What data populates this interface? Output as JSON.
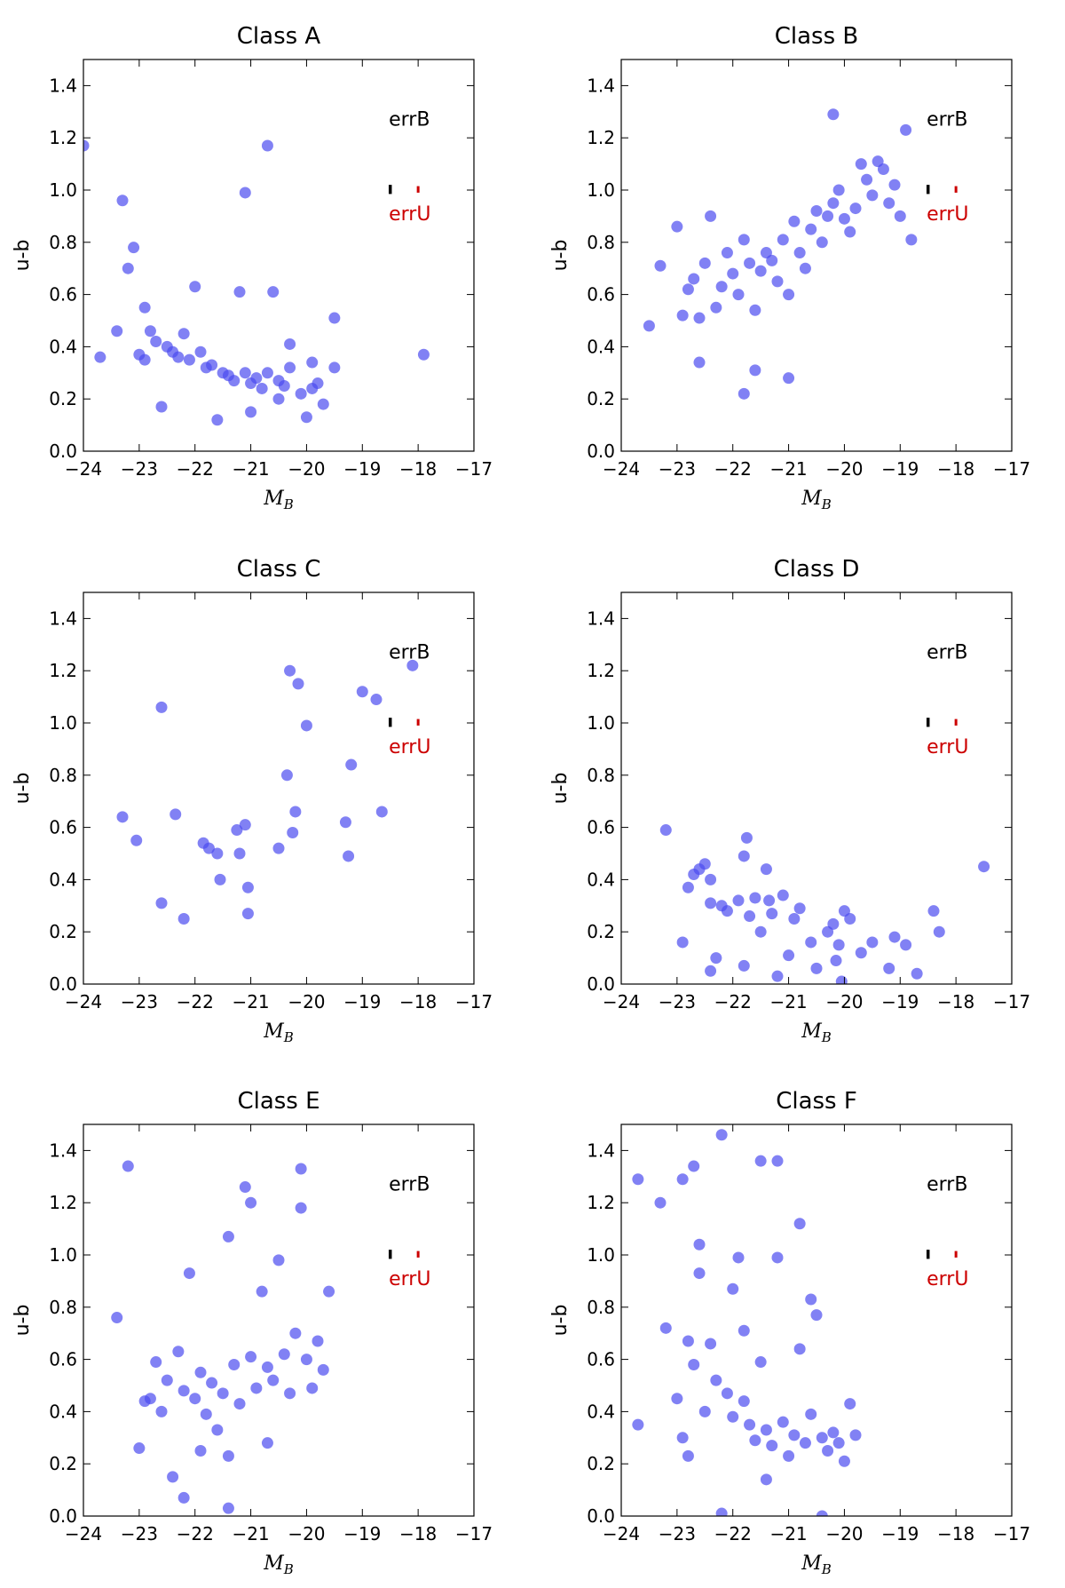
{
  "chart_data": [
    {
      "type": "scatter",
      "title": "Class A",
      "xlabel": "M",
      "xlabel_sub": "B",
      "ylabel": "u-b",
      "xlim": [
        -24,
        -17
      ],
      "ylim": [
        0.0,
        1.5
      ],
      "xticks": [
        "−24",
        "−23",
        "−22",
        "−21",
        "−20",
        "−19",
        "−18",
        "−17"
      ],
      "yticks": [
        "0.0",
        "0.2",
        "0.4",
        "0.6",
        "0.8",
        "1.0",
        "1.2",
        "1.4"
      ],
      "annotations": {
        "errB": "errB",
        "errU": "errU",
        "errB_color": "#000000",
        "errU_color": "#cc0000"
      },
      "point_color": "#4b4bf0",
      "x": [
        -24.0,
        -23.7,
        -23.4,
        -23.2,
        -23.1,
        -23.0,
        -22.9,
        -22.8,
        -22.7,
        -22.5,
        -22.4,
        -22.3,
        -22.1,
        -21.9,
        -21.8,
        -21.7,
        -21.5,
        -21.4,
        -21.3,
        -21.1,
        -21.0,
        -20.9,
        -20.8,
        -20.7,
        -20.5,
        -20.4,
        -20.3,
        -20.1,
        -20.0,
        -19.9,
        -19.8,
        -19.7,
        -19.5,
        -23.3,
        -21.1,
        -20.7,
        -17.9,
        -22.6,
        -22.0,
        -21.2,
        -20.6,
        -20.3,
        -19.5,
        -22.9,
        -22.2,
        -21.6,
        -21.0,
        -20.5,
        -19.9
      ],
      "y": [
        1.17,
        0.36,
        0.46,
        0.7,
        0.78,
        0.37,
        0.35,
        0.46,
        0.42,
        0.4,
        0.38,
        0.36,
        0.35,
        0.38,
        0.32,
        0.33,
        0.3,
        0.29,
        0.27,
        0.3,
        0.26,
        0.28,
        0.24,
        0.3,
        0.27,
        0.25,
        0.32,
        0.22,
        0.13,
        0.24,
        0.26,
        0.18,
        0.32,
        0.96,
        0.99,
        1.17,
        0.37,
        0.17,
        0.63,
        0.61,
        0.61,
        0.41,
        0.51,
        0.55,
        0.45,
        0.12,
        0.15,
        0.2,
        0.34
      ]
    },
    {
      "type": "scatter",
      "title": "Class B",
      "xlabel": "M",
      "xlabel_sub": "B",
      "ylabel": "u-b",
      "xlim": [
        -24,
        -17
      ],
      "ylim": [
        0.0,
        1.5
      ],
      "xticks": [
        "−24",
        "−23",
        "−22",
        "−21",
        "−20",
        "−19",
        "−18",
        "−17"
      ],
      "yticks": [
        "0.0",
        "0.2",
        "0.4",
        "0.6",
        "0.8",
        "1.0",
        "1.2",
        "1.4"
      ],
      "annotations": {
        "errB": "errB",
        "errU": "errU",
        "errB_color": "#000000",
        "errU_color": "#cc0000"
      },
      "point_color": "#4b4bf0",
      "x": [
        -23.5,
        -23.3,
        -23.0,
        -22.9,
        -22.8,
        -22.7,
        -22.6,
        -22.5,
        -22.4,
        -22.3,
        -22.2,
        -22.1,
        -22.0,
        -21.9,
        -21.8,
        -21.7,
        -21.6,
        -21.5,
        -21.4,
        -21.3,
        -21.2,
        -21.1,
        -21.0,
        -20.9,
        -20.8,
        -20.7,
        -20.6,
        -20.5,
        -20.4,
        -20.3,
        -20.2,
        -20.1,
        -20.0,
        -19.9,
        -19.8,
        -19.7,
        -19.6,
        -19.5,
        -19.4,
        -19.3,
        -19.2,
        -19.1,
        -19.0,
        -18.9,
        -18.8,
        -21.8,
        -21.0,
        -20.2,
        -22.6,
        -21.6
      ],
      "y": [
        0.48,
        0.71,
        0.86,
        0.52,
        0.62,
        0.66,
        0.51,
        0.72,
        0.9,
        0.55,
        0.63,
        0.76,
        0.68,
        0.6,
        0.81,
        0.72,
        0.54,
        0.69,
        0.76,
        0.73,
        0.65,
        0.81,
        0.6,
        0.88,
        0.76,
        0.7,
        0.85,
        0.92,
        0.8,
        0.9,
        0.95,
        1.0,
        0.89,
        0.84,
        0.93,
        1.1,
        1.04,
        0.98,
        1.11,
        1.08,
        0.95,
        1.02,
        0.9,
        1.23,
        0.81,
        0.22,
        0.28,
        1.29,
        0.34,
        0.31
      ]
    },
    {
      "type": "scatter",
      "title": "Class C",
      "xlabel": "M",
      "xlabel_sub": "B",
      "ylabel": "u-b",
      "xlim": [
        -24,
        -17
      ],
      "ylim": [
        0.0,
        1.5
      ],
      "xticks": [
        "−24",
        "−23",
        "−22",
        "−21",
        "−20",
        "−19",
        "−18",
        "−17"
      ],
      "yticks": [
        "0.0",
        "0.2",
        "0.4",
        "0.6",
        "0.8",
        "1.0",
        "1.2",
        "1.4"
      ],
      "annotations": {
        "errB": "errB",
        "errU": "errU",
        "errB_color": "#000000",
        "errU_color": "#cc0000"
      },
      "point_color": "#4b4bf0",
      "x": [
        -23.3,
        -23.05,
        -22.6,
        -22.6,
        -22.35,
        -22.2,
        -21.85,
        -21.75,
        -21.6,
        -21.55,
        -21.25,
        -21.2,
        -21.1,
        -21.05,
        -21.05,
        -20.5,
        -20.35,
        -20.3,
        -20.25,
        -20.2,
        -20.15,
        -20.0,
        -19.3,
        -19.2,
        -19.25,
        -19.0,
        -18.75,
        -18.65,
        -18.1
      ],
      "y": [
        0.64,
        0.55,
        1.06,
        0.31,
        0.65,
        0.25,
        0.54,
        0.52,
        0.5,
        0.4,
        0.59,
        0.5,
        0.61,
        0.37,
        0.27,
        0.52,
        0.8,
        1.2,
        0.58,
        0.66,
        1.15,
        0.99,
        0.62,
        0.84,
        0.49,
        1.12,
        1.09,
        0.66,
        1.22
      ]
    },
    {
      "type": "scatter",
      "title": "Class D",
      "xlabel": "M",
      "xlabel_sub": "B",
      "ylabel": "u-b",
      "xlim": [
        -24,
        -17
      ],
      "ylim": [
        0.0,
        1.5
      ],
      "xticks": [
        "−24",
        "−23",
        "−22",
        "−21",
        "−20",
        "−19",
        "−18",
        "−17"
      ],
      "yticks": [
        "0.0",
        "0.2",
        "0.4",
        "0.6",
        "0.8",
        "1.0",
        "1.2",
        "1.4"
      ],
      "annotations": {
        "errB": "errB",
        "errU": "errU",
        "errB_color": "#000000",
        "errU_color": "#cc0000"
      },
      "point_color": "#4b4bf0",
      "x": [
        -23.2,
        -22.9,
        -22.8,
        -22.7,
        -22.6,
        -22.5,
        -22.4,
        -22.4,
        -22.3,
        -22.2,
        -22.1,
        -21.9,
        -21.8,
        -21.75,
        -21.7,
        -21.6,
        -21.5,
        -21.4,
        -21.35,
        -21.3,
        -21.2,
        -21.1,
        -21.0,
        -20.9,
        -20.8,
        -20.6,
        -20.5,
        -20.3,
        -20.2,
        -20.15,
        -20.1,
        -20.05,
        -20.0,
        -19.9,
        -19.7,
        -19.5,
        -19.2,
        -19.1,
        -18.9,
        -18.7,
        -18.4,
        -18.3,
        -17.5,
        -22.4,
        -21.8
      ],
      "y": [
        0.59,
        0.16,
        0.37,
        0.42,
        0.44,
        0.46,
        0.4,
        0.31,
        0.1,
        0.3,
        0.28,
        0.32,
        0.49,
        0.56,
        0.26,
        0.33,
        0.2,
        0.44,
        0.32,
        0.27,
        0.03,
        0.34,
        0.11,
        0.25,
        0.29,
        0.16,
        0.06,
        0.2,
        0.23,
        0.09,
        0.15,
        0.01,
        0.28,
        0.25,
        0.12,
        0.16,
        0.06,
        0.18,
        0.15,
        0.04,
        0.28,
        0.2,
        0.45,
        0.05,
        0.07
      ]
    },
    {
      "type": "scatter",
      "title": "Class E",
      "xlabel": "M",
      "xlabel_sub": "B",
      "ylabel": "u-b",
      "xlim": [
        -24,
        -17
      ],
      "ylim": [
        0.0,
        1.5
      ],
      "xticks": [
        "−24",
        "−23",
        "−22",
        "−21",
        "−20",
        "−19",
        "−18",
        "−17"
      ],
      "yticks": [
        "0.0",
        "0.2",
        "0.4",
        "0.6",
        "0.8",
        "1.0",
        "1.2",
        "1.4"
      ],
      "annotations": {
        "errB": "errB",
        "errU": "errU",
        "errB_color": "#000000",
        "errU_color": "#cc0000"
      },
      "point_color": "#4b4bf0",
      "x": [
        -23.4,
        -23.2,
        -23.0,
        -22.8,
        -22.7,
        -22.6,
        -22.5,
        -22.4,
        -22.3,
        -22.2,
        -22.1,
        -22.0,
        -21.9,
        -21.8,
        -21.7,
        -21.6,
        -21.5,
        -21.4,
        -21.3,
        -21.2,
        -21.1,
        -21.0,
        -20.9,
        -20.8,
        -20.7,
        -20.6,
        -20.5,
        -20.4,
        -20.3,
        -20.2,
        -20.1,
        -20.0,
        -19.9,
        -19.8,
        -19.7,
        -19.6,
        -22.2,
        -21.4,
        -21.0,
        -20.1,
        -22.9,
        -21.9,
        -21.4,
        -20.7
      ],
      "y": [
        0.76,
        1.34,
        0.26,
        0.45,
        0.59,
        0.4,
        0.52,
        0.15,
        0.63,
        0.48,
        0.93,
        0.45,
        0.55,
        0.39,
        0.51,
        0.33,
        0.47,
        1.07,
        0.58,
        0.43,
        1.26,
        0.61,
        0.49,
        0.86,
        0.57,
        0.52,
        0.98,
        0.62,
        0.47,
        0.7,
        1.18,
        0.6,
        0.49,
        0.67,
        0.56,
        0.86,
        0.07,
        0.03,
        1.2,
        1.33,
        0.44,
        0.25,
        0.23,
        0.28
      ]
    },
    {
      "type": "scatter",
      "title": "Class F",
      "xlabel": "M",
      "xlabel_sub": "B",
      "ylabel": "u-b",
      "xlim": [
        -24,
        -17
      ],
      "ylim": [
        0.0,
        1.5
      ],
      "xticks": [
        "−24",
        "−23",
        "−22",
        "−21",
        "−20",
        "−19",
        "−18",
        "−17"
      ],
      "yticks": [
        "0.0",
        "0.2",
        "0.4",
        "0.6",
        "0.8",
        "1.0",
        "1.2",
        "1.4"
      ],
      "annotations": {
        "errB": "errB",
        "errU": "errU",
        "errB_color": "#000000",
        "errU_color": "#cc0000"
      },
      "point_color": "#4b4bf0",
      "x": [
        -23.7,
        -23.7,
        -23.3,
        -23.2,
        -23.0,
        -22.9,
        -22.8,
        -22.8,
        -22.7,
        -22.6,
        -22.5,
        -22.4,
        -22.3,
        -22.2,
        -22.1,
        -22.0,
        -21.9,
        -21.8,
        -21.7,
        -21.6,
        -21.5,
        -21.4,
        -21.3,
        -21.2,
        -21.1,
        -21.0,
        -20.9,
        -20.8,
        -20.7,
        -20.6,
        -20.5,
        -20.4,
        -20.3,
        -20.2,
        -20.1,
        -20.0,
        -19.9,
        -19.8,
        -22.2,
        -21.5,
        -21.2,
        -20.8,
        -20.4,
        -22.9,
        -22.6,
        -22.0,
        -21.8,
        -21.4,
        -20.6,
        -22.7
      ],
      "y": [
        1.29,
        0.35,
        1.2,
        0.72,
        0.45,
        1.29,
        0.67,
        0.23,
        0.58,
        0.93,
        0.4,
        0.66,
        0.52,
        1.46,
        0.47,
        0.38,
        0.99,
        0.44,
        0.35,
        0.29,
        0.59,
        0.33,
        0.27,
        0.99,
        0.36,
        0.23,
        0.31,
        1.12,
        0.28,
        0.39,
        0.77,
        0.3,
        0.25,
        0.32,
        0.28,
        0.21,
        0.43,
        0.31,
        0.01,
        1.36,
        1.36,
        0.64,
        0.0,
        0.3,
        1.04,
        0.87,
        0.71,
        0.14,
        0.83,
        1.34
      ]
    }
  ]
}
